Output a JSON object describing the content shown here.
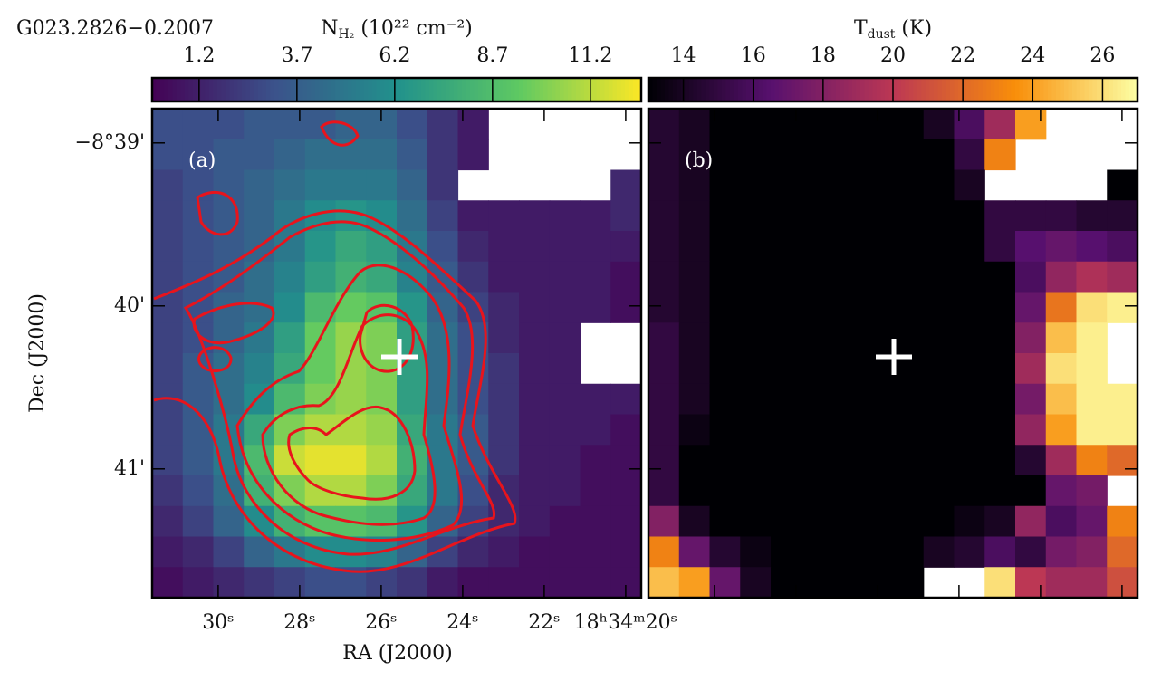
{
  "chart_data": [
    {
      "type": "heatmap",
      "title": "G023.2826−0.2007",
      "panel_label": "(a)",
      "xlabel": "RA (J2000)",
      "ylabel": "Dec (J2000)",
      "xlim": [
        31.62,
        19.62
      ],
      "xticks": [
        {
          "value": 30,
          "label": "30ˢ"
        },
        {
          "value": 28,
          "label": "28ˢ"
        },
        {
          "value": 26,
          "label": "26ˢ"
        },
        {
          "value": 24,
          "label": "24ˢ"
        },
        {
          "value": 22,
          "label": "22ˢ"
        },
        {
          "value": 20,
          "label": "18ʰ34ᵐ20ˢ"
        }
      ],
      "ylim": [
        38.79,
        41.79
      ],
      "yticks": [
        {
          "value": 39,
          "label": "−8°39'"
        },
        {
          "value": 40,
          "label": "40'"
        },
        {
          "value": 41,
          "label": "41'"
        }
      ],
      "colorbar": {
        "label": {
          "main": "N",
          "sub": "H₂",
          "rest": " (10²² cm⁻²)"
        },
        "cmap": "viridis",
        "lim": [
          0,
          12.5
        ],
        "ticks": [
          1.2,
          3.7,
          6.2,
          8.7,
          11.2
        ]
      },
      "z": [
        [
          3,
          3,
          3,
          3.5,
          3.5,
          3.5,
          4,
          4,
          3,
          2,
          1,
          null,
          null,
          null,
          null,
          null
        ],
        [
          3,
          3,
          3.5,
          3.5,
          4,
          4.5,
          4.5,
          4.5,
          3.5,
          2,
          1,
          null,
          null,
          null,
          null,
          null
        ],
        [
          2.5,
          3,
          3.5,
          4,
          4.5,
          5,
          5,
          5,
          4,
          2,
          null,
          null,
          null,
          null,
          null,
          1.5
        ],
        [
          2.5,
          3,
          3.5,
          4,
          5,
          6,
          6.5,
          6,
          4.5,
          2.5,
          1,
          1,
          1,
          1,
          1,
          1.5
        ],
        [
          2.5,
          3,
          3.5,
          4,
          5,
          6.5,
          7.5,
          7,
          5,
          3,
          1.5,
          1,
          1,
          1,
          1,
          1
        ],
        [
          2.5,
          3,
          3.5,
          4.5,
          5.5,
          7,
          8,
          7.5,
          5.5,
          3.5,
          2,
          1,
          1,
          1,
          1,
          0.5
        ],
        [
          2.5,
          3,
          4,
          4.5,
          6,
          8.5,
          9.5,
          9,
          6.5,
          4,
          2.5,
          1.5,
          1,
          1,
          1,
          0.5
        ],
        [
          2.5,
          3,
          4,
          5,
          7,
          9.5,
          10.5,
          10,
          7,
          4.5,
          3,
          1.5,
          1,
          1,
          null,
          null
        ],
        [
          2.5,
          3.5,
          4.5,
          5.5,
          7.5,
          9.5,
          10.5,
          10,
          7,
          4.5,
          3,
          2,
          1,
          1,
          null,
          null
        ],
        [
          2.5,
          3.5,
          4.5,
          6,
          8.5,
          10,
          10.5,
          10,
          7,
          4.5,
          3,
          2,
          1,
          1,
          1,
          1
        ],
        [
          2.5,
          3.5,
          5,
          7.5,
          10,
          11,
          11,
          10.5,
          7.5,
          5,
          3.5,
          2,
          1,
          1,
          1,
          0.5
        ],
        [
          2.5,
          3.5,
          5,
          8.5,
          11.5,
          12,
          12,
          11,
          8,
          5,
          3.5,
          2,
          1,
          1,
          0.5,
          0.5
        ],
        [
          2,
          3,
          4.5,
          8,
          10,
          11,
          11,
          10,
          7.5,
          5,
          3,
          1.5,
          1,
          1,
          0.5,
          0.5
        ],
        [
          1.5,
          2.5,
          4,
          6,
          8,
          9,
          9,
          8.5,
          6.5,
          4,
          2.5,
          1.5,
          1,
          0.5,
          0.5,
          0.5
        ],
        [
          1,
          1.5,
          2.5,
          4,
          5,
          6,
          6,
          5.5,
          4,
          2.5,
          1.5,
          1,
          0.5,
          0.5,
          0.5,
          0.5
        ],
        [
          0.5,
          1,
          1.5,
          2,
          2.5,
          3,
          3,
          2.5,
          2,
          1,
          0.5,
          0.5,
          0.5,
          0.5,
          0.5,
          0.5
        ]
      ]
    },
    {
      "type": "heatmap",
      "panel_label": "(b)",
      "colorbar": {
        "label": {
          "main": "T",
          "sub": "dust",
          "rest": " (K)"
        },
        "cmap": "inferno",
        "lim": [
          13,
          27
        ],
        "ticks": [
          14,
          16,
          18,
          20,
          22,
          24,
          26
        ]
      },
      "z": [
        [
          14.5,
          14,
          13,
          13,
          13,
          13,
          13,
          13,
          13,
          14,
          16,
          19,
          24,
          null,
          null,
          null
        ],
        [
          14.5,
          14,
          13,
          13,
          13,
          13,
          13,
          13,
          13,
          13,
          15,
          23,
          null,
          null,
          null,
          null
        ],
        [
          14.5,
          14,
          13,
          13,
          13,
          13,
          13,
          13,
          13,
          13,
          14,
          null,
          null,
          null,
          null,
          13
        ],
        [
          14.5,
          14,
          13,
          13,
          13,
          13,
          13,
          13,
          13,
          13,
          13,
          15,
          15,
          15,
          14.5,
          14.5
        ],
        [
          14.5,
          14,
          13,
          13,
          13,
          13,
          13,
          13,
          13,
          13,
          13,
          15,
          16.5,
          17,
          16.5,
          16
        ],
        [
          14.5,
          14,
          13,
          13,
          13,
          13,
          13,
          13,
          13,
          13,
          13,
          13,
          16,
          18.5,
          19.5,
          19
        ],
        [
          14.5,
          14,
          13,
          13,
          13,
          13,
          13,
          13,
          13,
          13,
          13,
          13,
          17,
          22.5,
          26,
          26.5
        ],
        [
          15,
          14,
          13,
          13,
          13,
          13,
          13,
          13,
          13,
          13,
          13,
          13,
          18,
          25,
          26.5,
          null
        ],
        [
          15,
          14,
          13,
          13,
          13,
          13,
          13,
          13,
          13,
          13,
          13,
          13,
          19,
          26,
          26.5,
          null
        ],
        [
          15,
          14,
          13,
          13,
          13,
          13,
          13,
          13,
          13,
          13,
          13,
          13,
          17.5,
          25,
          26.5,
          26.5
        ],
        [
          15,
          13.5,
          13,
          13,
          13,
          13,
          13,
          13,
          13,
          13,
          13,
          13,
          18.5,
          24,
          26.5,
          26.5
        ],
        [
          15,
          13,
          13,
          13,
          13,
          13,
          13,
          13,
          13,
          13,
          13,
          13,
          14.5,
          19,
          23,
          22
        ],
        [
          15,
          13,
          13,
          13,
          13,
          13,
          13,
          13,
          13,
          13,
          13,
          13,
          13,
          17,
          17.5,
          null
        ],
        [
          18,
          14,
          13,
          13,
          13,
          13,
          13,
          13,
          13,
          13,
          13.5,
          14,
          18.5,
          16,
          17,
          23
        ],
        [
          23,
          17,
          14.5,
          13.5,
          13,
          13,
          13,
          13,
          13,
          14,
          14.5,
          16,
          15,
          17.5,
          18,
          22
        ],
        [
          25,
          24,
          17,
          14,
          13,
          13,
          13,
          13,
          13,
          null,
          null,
          26,
          20,
          19,
          19,
          21
        ]
      ]
    }
  ]
}
